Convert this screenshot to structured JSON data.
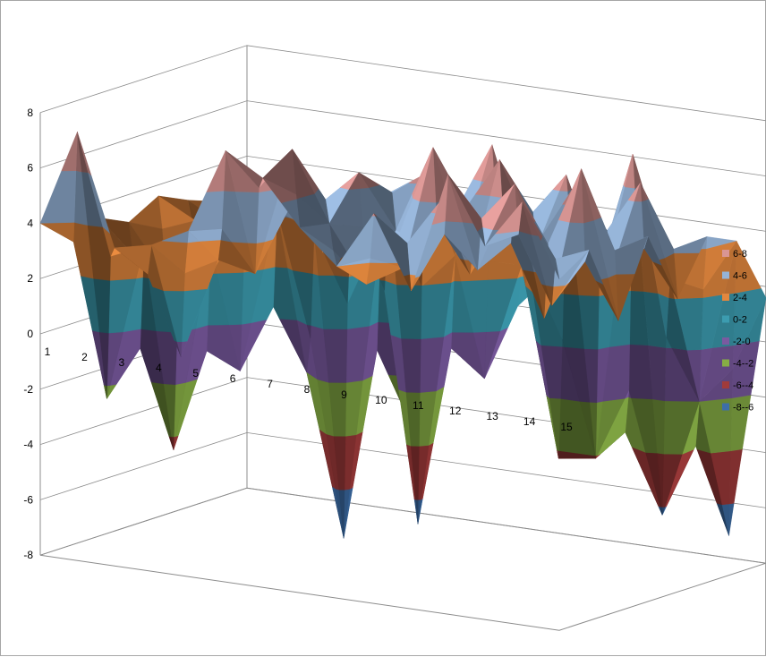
{
  "chart_data": {
    "type": "surface",
    "title": "",
    "xlabel": "",
    "ylabel": "",
    "zlim": [
      -8,
      8
    ],
    "z_ticks": [
      "-8",
      "-6",
      "-4",
      "-2",
      "0",
      "2",
      "4",
      "6",
      "8"
    ],
    "categories": [
      "1",
      "2",
      "3",
      "4",
      "5",
      "6",
      "7",
      "8",
      "9",
      "10",
      "11",
      "12",
      "13",
      "14",
      "15"
    ],
    "legend_position": "right",
    "bands": [
      {
        "name": "6-8",
        "color": "#d99694"
      },
      {
        "name": "4-6",
        "color": "#95b3d7"
      },
      {
        "name": "2-4",
        "color": "#e2873e"
      },
      {
        "name": "0-2",
        "color": "#3c9cb0"
      },
      {
        "name": "-2-0",
        "color": "#7a5aa0"
      },
      {
        "name": "-4--2",
        "color": "#86ad45"
      },
      {
        "name": "-6--4",
        "color": "#a13b3b"
      },
      {
        "name": "-8--6",
        "color": "#3d6ea8"
      }
    ],
    "grid": [
      [
        4.0,
        7.5,
        3.5,
        3.8,
        4.5,
        7.6,
        6.8,
        5.2,
        4.0,
        6.1,
        3.5,
        7.9,
        5.5,
        7.3,
        4.7
      ],
      [
        4.0,
        -2.5,
        3.2,
        -0.6,
        3.1,
        2.8,
        7.5,
        5.0,
        3.0,
        3.8,
        6.4,
        4.1,
        7.4,
        3.2,
        5.4
      ],
      [
        3.5,
        0.8,
        -4.5,
        3.0,
        4.6,
        6.5,
        3.4,
        6.5,
        4.6,
        7.8,
        3.4,
        6.3,
        2.2,
        7.8,
        2.5
      ],
      [
        3.0,
        1.2,
        -0.7,
        -1.8,
        4.2,
        3.6,
        4.5,
        5.4,
        6.3,
        3.8,
        7.2,
        4.2,
        6.6,
        3.6,
        5.2
      ],
      [
        3.6,
        2.9,
        -1.0,
        1.4,
        -2.0,
        -7.8,
        3.5,
        -6.9,
        3.0,
        7.2,
        3.0,
        6.5,
        3.0,
        6.6,
        2.6
      ],
      [
        3.1,
        1.0,
        3.2,
        0.9,
        -1.4,
        3.8,
        -3.8,
        3.2,
        -1.8,
        2.5,
        -4.3,
        -4.1,
        7.1,
        2.8,
        4.5
      ],
      [
        2.7,
        2.0,
        3.0,
        2.0,
        0.9,
        2.3,
        -1.0,
        1.5,
        0.5,
        1.8,
        2.2,
        -3.5,
        -6.3,
        -2.0,
        4.0
      ],
      [
        1.8,
        1.0,
        2.5,
        1.0,
        2.4,
        1.5,
        2.5,
        1.2,
        2.6,
        1.0,
        2.8,
        -2.5,
        0.0,
        -7.2,
        1.6
      ]
    ]
  }
}
